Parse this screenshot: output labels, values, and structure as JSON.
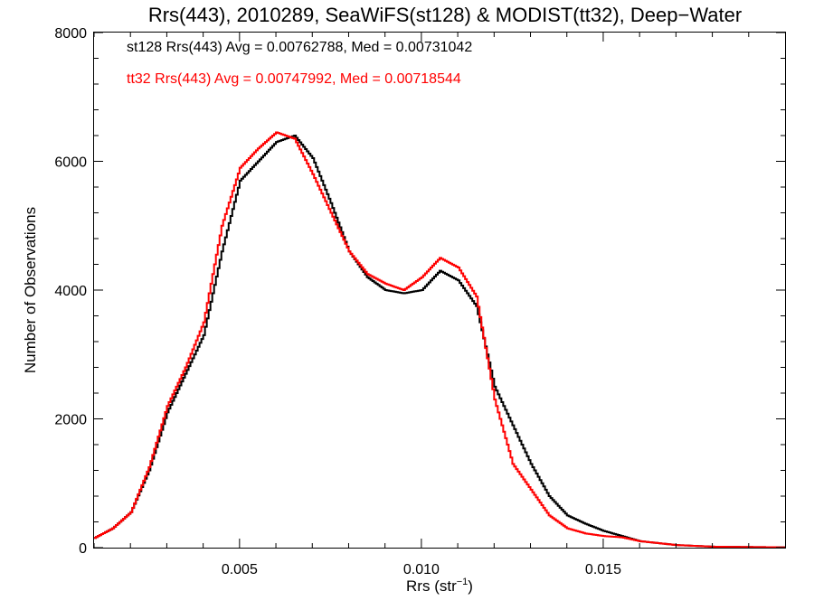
{
  "chart_data": {
    "type": "line",
    "title": "Rrs(443), 2010289, SeaWiFS(st128) & MODIST(tt32), Deep−Water",
    "xlabel": "Rrs (str",
    "xlabel_sup": "−1",
    "xlabel_close": ")",
    "ylabel": "Number of Observations",
    "xlim": [
      0.001,
      0.02
    ],
    "ylim": [
      0,
      8000
    ],
    "grid": false,
    "xticks": [
      {
        "value": 0.005,
        "label": "0.005"
      },
      {
        "value": 0.01,
        "label": "0.010"
      },
      {
        "value": 0.015,
        "label": "0.015"
      }
    ],
    "yticks": [
      {
        "value": 0,
        "label": "0"
      },
      {
        "value": 2000,
        "label": "2000"
      },
      {
        "value": 4000,
        "label": "4000"
      },
      {
        "value": 6000,
        "label": "6000"
      },
      {
        "value": 8000,
        "label": "8000"
      }
    ],
    "annotations": [
      {
        "text": "st128 Rrs(443) Avg = 0.00762788, Med = 0.00731042",
        "color": "#000000"
      },
      {
        "text": "tt32 Rrs(443) Avg = 0.00747992, Med = 0.00718544",
        "color": "#ff0000"
      }
    ],
    "series": [
      {
        "name": "st128",
        "color": "#000000",
        "step": true,
        "x": [
          0.001,
          0.0015,
          0.002,
          0.0025,
          0.003,
          0.0035,
          0.004,
          0.0045,
          0.005,
          0.0055,
          0.006,
          0.0065,
          0.007,
          0.0075,
          0.008,
          0.0085,
          0.009,
          0.0095,
          0.01,
          0.0105,
          0.011,
          0.0115,
          0.012,
          0.0125,
          0.013,
          0.0135,
          0.014,
          0.0145,
          0.015,
          0.0155,
          0.016,
          0.017,
          0.018,
          0.019,
          0.02
        ],
        "y": [
          150,
          300,
          550,
          1200,
          2100,
          2700,
          3300,
          4600,
          5700,
          6000,
          6300,
          6400,
          6050,
          5350,
          4600,
          4200,
          4000,
          3950,
          4000,
          4300,
          4150,
          3750,
          2500,
          1900,
          1300,
          800,
          500,
          370,
          260,
          180,
          100,
          40,
          15,
          10,
          5
        ]
      },
      {
        "name": "tt32",
        "color": "#ff0000",
        "step": true,
        "x": [
          0.001,
          0.0015,
          0.002,
          0.0025,
          0.003,
          0.0035,
          0.004,
          0.0045,
          0.005,
          0.0055,
          0.006,
          0.0065,
          0.007,
          0.0075,
          0.008,
          0.0085,
          0.009,
          0.0095,
          0.01,
          0.0105,
          0.011,
          0.0115,
          0.012,
          0.0125,
          0.013,
          0.0135,
          0.014,
          0.0145,
          0.015,
          0.0155,
          0.016,
          0.017,
          0.018,
          0.019,
          0.02
        ],
        "y": [
          150,
          300,
          550,
          1250,
          2200,
          2800,
          3500,
          5000,
          5900,
          6200,
          6450,
          6350,
          5800,
          5200,
          4600,
          4250,
          4100,
          4000,
          4200,
          4500,
          4350,
          3900,
          2300,
          1300,
          900,
          500,
          300,
          220,
          180,
          160,
          100,
          40,
          15,
          10,
          5
        ]
      }
    ]
  }
}
